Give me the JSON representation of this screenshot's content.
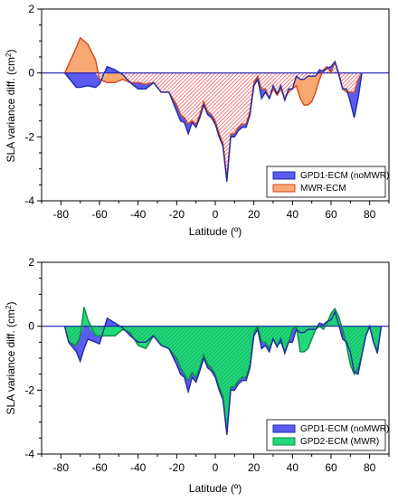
{
  "colors": {
    "blue_fill": "#5b5bf0",
    "blue_line": "#1f2aa8",
    "orange_fill": "#f7a873",
    "orange_line": "#d4461c",
    "green_fill": "#1fd97a",
    "green_line": "#0c8c3c",
    "hatch_red": "#e8454f",
    "hatch_green": "#1a9e55",
    "zero_line": "#1a1aa8"
  },
  "chart_data": [
    {
      "type": "area",
      "xlabel": "Latitude (º)",
      "ylabel": "SLA variance diff. (cm",
      "ylabel_sup": "2",
      "ylabel_close": ")",
      "xlim": [
        -90,
        90
      ],
      "ylim": [
        -4,
        2
      ],
      "x_ticks": [
        -80,
        -60,
        -40,
        -20,
        0,
        20,
        40,
        60,
        80
      ],
      "x_tick_labels": [
        "-80",
        "-60",
        "-40",
        "-20",
        "0",
        "20",
        "40",
        "60",
        "80"
      ],
      "y_ticks": [
        2,
        0,
        -2,
        -4
      ],
      "y_tick_labels": [
        "2",
        "0",
        "-2",
        "-4"
      ],
      "legend": "bottom-right",
      "x": [
        -78,
        -72,
        -70,
        -66,
        -62,
        -60,
        -56,
        -52,
        -48,
        -44,
        -40,
        -36,
        -32,
        -28,
        -24,
        -20,
        -18,
        -16,
        -14,
        -12,
        -10,
        -8,
        -6,
        -4,
        -2,
        0,
        2,
        4,
        6,
        8,
        10,
        12,
        14,
        16,
        18,
        20,
        22,
        24,
        26,
        28,
        30,
        32,
        34,
        36,
        38,
        40,
        42,
        44,
        46,
        48,
        50,
        52,
        54,
        56,
        58,
        60,
        62,
        64,
        66,
        68,
        70,
        72,
        74,
        76
      ],
      "series": [
        {
          "name": "GPD1-ECM (noMWR)",
          "values": [
            0.0,
            -0.45,
            -0.45,
            -0.4,
            -0.45,
            -0.35,
            0.2,
            0.1,
            -0.05,
            -0.3,
            -0.5,
            -0.5,
            -0.3,
            -0.6,
            -0.6,
            -1.2,
            -1.5,
            -1.55,
            -1.9,
            -1.55,
            -1.7,
            -1.4,
            -1.0,
            -1.3,
            -1.4,
            -1.6,
            -2.0,
            -2.3,
            -3.4,
            -2.0,
            -2.0,
            -1.8,
            -1.7,
            -1.7,
            -1.3,
            -0.4,
            -0.2,
            -0.8,
            -0.6,
            -0.8,
            -0.4,
            -0.65,
            -0.4,
            -0.85,
            -0.5,
            -0.5,
            -0.1,
            -0.2,
            -0.2,
            -0.1,
            -0.1,
            -0.1,
            0.1,
            0.05,
            0.15,
            0.2,
            0.35,
            -0.05,
            -0.5,
            -0.5,
            -0.9,
            -1.4,
            -0.8,
            0.0
          ]
        },
        {
          "name": "MWR-ECM",
          "values": [
            0.0,
            0.8,
            1.1,
            0.9,
            0.4,
            -0.2,
            -0.3,
            -0.3,
            -0.2,
            -0.3,
            -0.3,
            -0.35,
            -0.3,
            -0.6,
            -0.6,
            -1.0,
            -1.3,
            -1.4,
            -1.6,
            -1.5,
            -1.6,
            -1.3,
            -0.9,
            -1.2,
            -1.3,
            -1.5,
            -1.9,
            -2.2,
            -3.3,
            -1.9,
            -1.9,
            -1.7,
            -1.6,
            -1.6,
            -1.2,
            -0.3,
            -0.1,
            -0.5,
            -0.5,
            -0.8,
            -0.5,
            -0.7,
            -0.5,
            -0.8,
            -0.6,
            -0.5,
            -0.4,
            -0.8,
            -1.0,
            -1.0,
            -0.9,
            -0.6,
            -0.2,
            0.1,
            0.2,
            0.0,
            0.35,
            0.0,
            -0.5,
            -0.6,
            -0.6,
            -0.6,
            -0.2,
            0.0
          ]
        }
      ]
    },
    {
      "type": "area",
      "xlabel": "Latitude (º)",
      "ylabel": "SLA variance diff. (cm",
      "ylabel_sup": "2",
      "ylabel_close": ")",
      "xlim": [
        -90,
        90
      ],
      "ylim": [
        -4,
        2
      ],
      "x_ticks": [
        -80,
        -60,
        -40,
        -20,
        0,
        20,
        40,
        60,
        80
      ],
      "x_tick_labels": [
        "-80",
        "-60",
        "-40",
        "-20",
        "0",
        "20",
        "40",
        "60",
        "80"
      ],
      "y_ticks": [
        2,
        0,
        -2,
        -4
      ],
      "y_tick_labels": [
        "2",
        "0",
        "-2",
        "-4"
      ],
      "legend": "bottom-right",
      "x": [
        -78,
        -76,
        -72,
        -70,
        -68,
        -66,
        -62,
        -60,
        -56,
        -52,
        -48,
        -44,
        -40,
        -36,
        -32,
        -28,
        -24,
        -20,
        -18,
        -16,
        -14,
        -12,
        -10,
        -8,
        -6,
        -4,
        -2,
        0,
        2,
        4,
        6,
        8,
        10,
        12,
        14,
        16,
        18,
        20,
        22,
        24,
        26,
        28,
        30,
        32,
        34,
        36,
        38,
        40,
        42,
        44,
        46,
        48,
        50,
        52,
        54,
        56,
        58,
        60,
        62,
        64,
        66,
        68,
        70,
        72,
        74,
        76,
        78,
        80,
        82,
        84,
        86
      ],
      "series": [
        {
          "name": "GPD1-ECM (noMWR)",
          "values": [
            0.0,
            -0.5,
            -0.8,
            -1.1,
            -0.7,
            -0.4,
            -0.5,
            -0.55,
            0.25,
            0.1,
            -0.05,
            -0.3,
            -0.5,
            -0.5,
            -0.3,
            -0.6,
            -0.7,
            -1.2,
            -1.5,
            -1.6,
            -2.05,
            -1.6,
            -1.75,
            -1.4,
            -1.0,
            -1.3,
            -1.4,
            -1.6,
            -2.0,
            -2.3,
            -3.4,
            -2.0,
            -2.0,
            -1.8,
            -1.7,
            -1.7,
            -1.3,
            -0.3,
            -0.1,
            -0.7,
            -0.6,
            -0.8,
            -0.4,
            -0.65,
            -0.4,
            -0.85,
            -0.5,
            -0.5,
            -0.1,
            -0.2,
            -0.2,
            -0.1,
            -0.1,
            -0.1,
            0.1,
            0.05,
            0.15,
            0.2,
            0.45,
            0.05,
            -0.4,
            -0.5,
            -0.8,
            -1.45,
            -1.5,
            -0.9,
            -0.3,
            0.0,
            -0.5,
            -0.85,
            0.0
          ]
        },
        {
          "name": "GPD2-ECM (MWR)",
          "values": [
            0.0,
            -0.5,
            -0.6,
            -0.3,
            0.6,
            0.2,
            -0.3,
            -0.3,
            -0.3,
            -0.3,
            -0.1,
            -0.2,
            -0.6,
            -0.7,
            -0.3,
            -0.6,
            -0.7,
            -1.0,
            -1.3,
            -1.5,
            -1.7,
            -1.45,
            -1.6,
            -1.3,
            -0.9,
            -1.2,
            -1.3,
            -1.5,
            -1.9,
            -2.2,
            -3.3,
            -1.9,
            -1.9,
            -1.7,
            -1.6,
            -1.6,
            -1.2,
            -0.2,
            0.0,
            -0.5,
            -0.5,
            -0.7,
            -0.4,
            -0.6,
            -0.5,
            -0.8,
            -0.5,
            -0.1,
            0.0,
            -0.8,
            -0.8,
            -0.7,
            -0.4,
            -0.1,
            0.0,
            -0.1,
            0.1,
            0.4,
            0.55,
            0.3,
            -0.1,
            -0.6,
            -1.2,
            -1.5,
            -1.3,
            -0.9,
            -0.3,
            0.0,
            -0.5,
            -0.75,
            0.0
          ]
        }
      ]
    }
  ]
}
